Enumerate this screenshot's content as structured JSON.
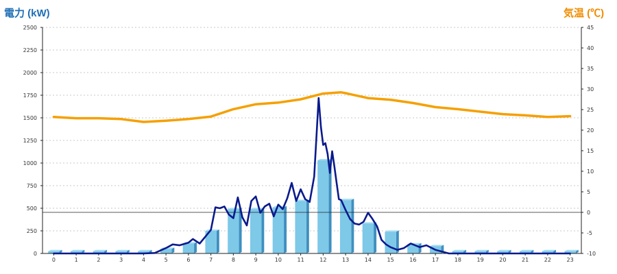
{
  "chart_data": {
    "type": "bar+line",
    "title": "",
    "ylabel_left": "電力 (kW)",
    "ylabel_right": "気温 (℃)",
    "x_ticks": [
      "0",
      "1",
      "2",
      "3",
      "4",
      "5",
      "6",
      "7",
      "8",
      "9",
      "10",
      "11",
      "12",
      "13",
      "14",
      "15",
      "16",
      "17",
      "18",
      "19",
      "20",
      "21",
      "22",
      "23"
    ],
    "y_left_ticks": [
      "0",
      "250",
      "500",
      "750",
      "1000",
      "1250",
      "1500",
      "1750",
      "2000",
      "2250",
      "2500"
    ],
    "y_right_ticks": [
      "-10",
      "-5",
      "0",
      "5",
      "10",
      "15",
      "20",
      "25",
      "30",
      "35",
      "40",
      "45"
    ],
    "y_left_range": [
      0,
      2500
    ],
    "y_right_range": [
      -10,
      45
    ],
    "grid": true,
    "bars": {
      "name": "",
      "color": "#7ec8e8",
      "values": [
        25,
        25,
        25,
        25,
        25,
        50,
        110,
        250,
        490,
        490,
        510,
        580,
        1030,
        590,
        330,
        240,
        100,
        80,
        25,
        25,
        25,
        25,
        25,
        25
      ]
    },
    "power_line": {
      "name": "",
      "color": "#0a1a8c",
      "x": [
        0,
        1,
        2,
        3,
        4,
        4.5,
        5,
        5.3,
        5.6,
        6,
        6.2,
        6.5,
        6.8,
        7,
        7.2,
        7.4,
        7.6,
        7.8,
        8,
        8.2,
        8.4,
        8.6,
        8.8,
        9,
        9.2,
        9.4,
        9.6,
        9.8,
        10,
        10.2,
        10.4,
        10.6,
        10.8,
        11,
        11.2,
        11.4,
        11.6,
        11.8,
        11.9,
        12,
        12.1,
        12.2,
        12.3,
        12.4,
        12.5,
        12.6,
        12.7,
        12.8,
        13,
        13.2,
        13.4,
        13.6,
        13.8,
        14,
        14.2,
        14.4,
        14.6,
        14.8,
        15,
        15.3,
        15.6,
        15.9,
        16,
        16.3,
        16.6,
        17,
        17.3,
        17.6,
        18,
        19,
        20,
        21,
        22,
        23
      ],
      "values": [
        0,
        0,
        0,
        0,
        0,
        5,
        60,
        100,
        90,
        120,
        160,
        110,
        200,
        260,
        510,
        500,
        520,
        430,
        390,
        620,
        400,
        310,
        580,
        630,
        450,
        520,
        550,
        410,
        540,
        490,
        610,
        780,
        580,
        710,
        600,
        570,
        850,
        1720,
        1400,
        1200,
        1220,
        1100,
        890,
        1130,
        960,
        780,
        600,
        590,
        480,
        380,
        330,
        320,
        350,
        450,
        380,
        300,
        150,
        100,
        70,
        40,
        60,
        110,
        100,
        70,
        90,
        40,
        20,
        0,
        0,
        0,
        0,
        0,
        0,
        0
      ]
    },
    "temperature_line": {
      "name": "",
      "color": "#f5a000",
      "x": [
        0,
        1,
        2,
        3,
        4,
        5,
        6,
        7,
        8,
        9,
        10,
        11,
        12,
        12.8,
        13,
        14,
        15,
        16,
        17,
        18,
        19,
        20,
        21,
        22,
        23
      ],
      "values": [
        23.2,
        22.9,
        22.9,
        22.7,
        22.0,
        22.3,
        22.7,
        23.3,
        25.1,
        26.3,
        26.7,
        27.5,
        28.9,
        29.2,
        29.0,
        27.8,
        27.4,
        26.6,
        25.6,
        25.1,
        24.5,
        23.9,
        23.6,
        23.2,
        23.4
      ]
    }
  }
}
